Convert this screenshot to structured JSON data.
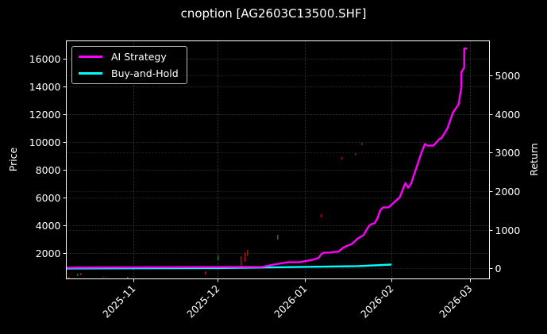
{
  "title": "cnoption [AG2603C13500.SHF]",
  "legend": [
    {
      "label": "AI Strategy",
      "color": "#ff00ff"
    },
    {
      "label": "Buy-and-Hold",
      "color": "#00ffff"
    }
  ],
  "axes": {
    "left_label": "Price",
    "right_label": "Return",
    "left_ticks": [
      "2000",
      "4000",
      "6000",
      "8000",
      "10000",
      "12000",
      "14000",
      "16000"
    ],
    "right_ticks": [
      "0",
      "1000",
      "2000",
      "3000",
      "4000",
      "5000"
    ],
    "x_ticks": [
      "2025-11",
      "2025-12",
      "2026-01",
      "2026-02",
      "2026-03"
    ]
  },
  "chart_data": {
    "type": "line",
    "title": "cnoption [AG2603C13500.SHF]",
    "xlabel": "",
    "ylabel": "Price",
    "y2label": "Return",
    "xlim": [
      "2025-10-08",
      "2026-03-08"
    ],
    "ylim": [
      170,
      17300
    ],
    "y2lim": [
      -270,
      5890
    ],
    "grid": true,
    "legend_position": "upper left",
    "x_ticks": [
      "2025-11",
      "2025-12",
      "2026-01",
      "2026-02",
      "2026-03"
    ],
    "left_ticks": [
      2000,
      4000,
      6000,
      8000,
      10000,
      12000,
      14000,
      16000
    ],
    "right_ticks": [
      0,
      1000,
      2000,
      3000,
      4000,
      5000
    ],
    "series": [
      {
        "name": "AI Strategy",
        "axis": "right",
        "color": "#ff00ff",
        "x": [
          "2025-10-08",
          "2025-12-17",
          "2025-12-21",
          "2025-12-26",
          "2025-12-30",
          "2026-01-04",
          "2026-01-06",
          "2026-01-07",
          "2026-01-08",
          "2026-01-10",
          "2026-01-12",
          "2026-01-13",
          "2026-01-15",
          "2026-01-18",
          "2026-01-20",
          "2026-01-22",
          "2026-01-23",
          "2026-01-24",
          "2026-01-25",
          "2026-01-26",
          "2026-01-27",
          "2026-01-28",
          "2026-01-29",
          "2026-01-30",
          "2026-01-31",
          "2026-02-04",
          "2026-02-06",
          "2026-02-07",
          "2026-02-08",
          "2026-02-10",
          "2026-02-12",
          "2026-02-13",
          "2026-02-14",
          "2026-02-16",
          "2026-02-18",
          "2026-02-19",
          "2026-02-21",
          "2026-02-22",
          "2026-02-23",
          "2026-02-25",
          "2026-02-26",
          "2026-02-26",
          "2026-02-27",
          "2026-02-27",
          "2026-02-28",
          "2026-02-28"
        ],
        "values": [
          20,
          40,
          100,
          160,
          160,
          225,
          270,
          370,
          410,
          410,
          430,
          430,
          550,
          635,
          775,
          860,
          980,
          1100,
          1150,
          1170,
          1290,
          1500,
          1580,
          1580,
          1580,
          1840,
          2210,
          2090,
          2190,
          2620,
          3050,
          3220,
          3180,
          3180,
          3340,
          3380,
          3630,
          3830,
          4040,
          4250,
          4710,
          5080,
          5200,
          5690,
          5690,
          5690
        ]
      },
      {
        "name": "Buy-and-Hold",
        "axis": "right",
        "color": "#00ffff",
        "x": [
          "2025-10-08",
          "2025-12-01",
          "2026-01-01",
          "2026-01-20",
          "2026-02-01"
        ],
        "values": [
          0,
          10,
          40,
          60,
          100
        ]
      }
    ]
  }
}
